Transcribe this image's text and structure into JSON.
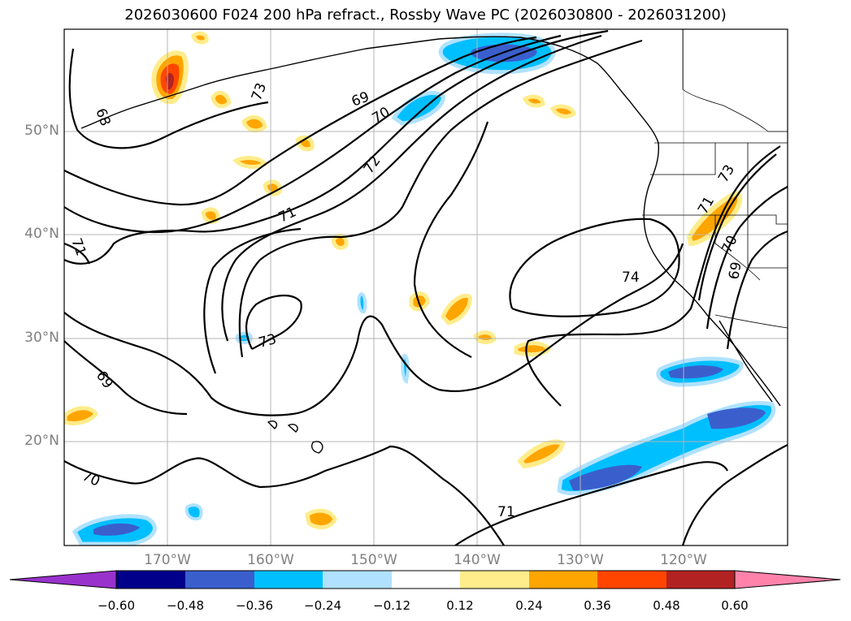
{
  "title": "2026030600 F024 200 hPa refract., Rossby Wave PC (2026030800 - 2026031200)",
  "map": {
    "projection": "equirectangular",
    "lon_range": [
      180,
      110
    ],
    "lat_range": [
      10,
      60
    ],
    "grid": true,
    "lat_ticks": [
      {
        "lat": 50,
        "label": "50°N"
      },
      {
        "lat": 40,
        "label": "40°N"
      },
      {
        "lat": 30,
        "label": "30°N"
      },
      {
        "lat": 20,
        "label": "20°N"
      }
    ],
    "lon_ticks": [
      {
        "lon": 170,
        "label": "170°W"
      },
      {
        "lon": 160,
        "label": "160°W"
      },
      {
        "lon": 150,
        "label": "150°W"
      },
      {
        "lon": 140,
        "label": "140°W"
      },
      {
        "lon": 130,
        "label": "130°W"
      },
      {
        "lon": 120,
        "label": "120°W"
      }
    ],
    "contour_labels": [
      "69",
      "70",
      "71",
      "72",
      "73",
      "74",
      "69",
      "70",
      "71",
      "73",
      "71",
      "73",
      "70",
      "69",
      "68",
      "71"
    ]
  },
  "colorbar": {
    "ticks": [
      "−0.60",
      "−0.48",
      "−0.36",
      "−0.24",
      "−0.12",
      "0.12",
      "0.24",
      "0.36",
      "0.48",
      "0.60"
    ],
    "levels": [
      -0.6,
      -0.48,
      -0.36,
      -0.24,
      -0.12,
      0.12,
      0.24,
      0.36,
      0.48,
      0.6
    ],
    "colors": [
      "#9932cc",
      "#00008b",
      "#3a5fcd",
      "#00bfff",
      "#b0e2ff",
      "#ffffff",
      "#ffec8b",
      "#ffa500",
      "#ff4500",
      "#b22222",
      "#ff82ab"
    ],
    "extend": "both"
  }
}
